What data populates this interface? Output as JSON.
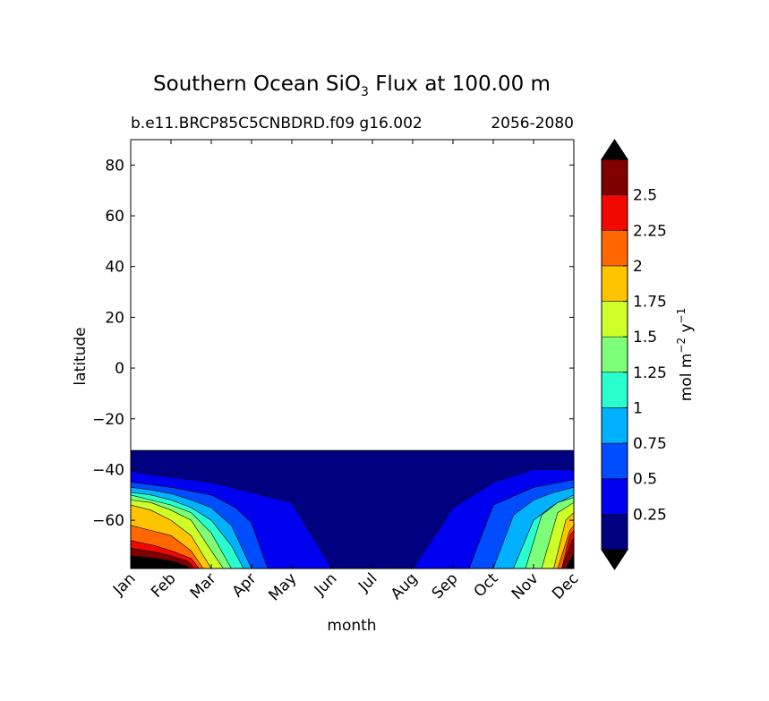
{
  "figure": {
    "title_main": "Southern Ocean SiO",
    "title_sub": "3",
    "title_rest": " Flux at 100.00 m",
    "subtitle_left": "b.e11.BRCP85C5CNBDRD.f09 g16.002",
    "subtitle_right": "2056-2080"
  },
  "chart_data": {
    "type": "heatmap",
    "xlabel": "month",
    "ylabel": "latitude",
    "x_ticks": [
      "Jan",
      "Feb",
      "Mar",
      "Apr",
      "May",
      "Jun",
      "Jul",
      "Aug",
      "Sep",
      "Oct",
      "Nov",
      "Dec"
    ],
    "y_ticks": [
      80,
      60,
      40,
      20,
      0,
      -20,
      -40,
      -60
    ],
    "y_tick_labels": [
      "80",
      "60",
      "40",
      "20",
      "0",
      "−20",
      "−40",
      "−60"
    ],
    "ylim": [
      -79,
      90
    ],
    "data_region_lat": [
      -79,
      -32.5
    ],
    "colorbar": {
      "label_main": "mol m",
      "label_sup1": "−2",
      "label_mid": " y",
      "label_sup2": "−1",
      "levels": [
        0,
        0.25,
        0.5,
        0.75,
        1,
        1.25,
        1.5,
        1.75,
        2,
        2.25,
        2.5,
        2.75
      ],
      "tick_labels": [
        "0.25",
        "0.5",
        "0.75",
        "1",
        "1.25",
        "1.5",
        "1.75",
        "2",
        "2.25",
        "2.5"
      ],
      "colors": [
        "#000080",
        "#0000f1",
        "#004dff",
        "#00b1ff",
        "#29ffce",
        "#7dff7a",
        "#ceff29",
        "#ffc400",
        "#ff6800",
        "#f10800",
        "#800000"
      ],
      "under_color": "#000000",
      "over_color": "#000000",
      "extend": "both"
    },
    "contours": [
      {
        "level": 0.25,
        "months": [
          0,
          0.5,
          1,
          2,
          3,
          4,
          5,
          6,
          7,
          8,
          9,
          10,
          11
        ],
        "lat": [
          -40.5,
          -42,
          -43,
          -45,
          -49,
          -53,
          -79,
          -79,
          -79,
          -55,
          -45,
          -40,
          -40
        ]
      },
      {
        "level": 0.5,
        "months": [
          0,
          0.5,
          1,
          2,
          2.6,
          3,
          3.4,
          8.4,
          9,
          10,
          11
        ],
        "lat": [
          -45,
          -46,
          -47,
          -50,
          -55,
          -61,
          -79,
          -79,
          -54,
          -47,
          -44
        ]
      },
      {
        "level": 0.75,
        "months": [
          0,
          0.5,
          1,
          1.5,
          2,
          2.5,
          3,
          9,
          9.5,
          10,
          10.5,
          11
        ],
        "lat": [
          -47,
          -48,
          -49.5,
          -52,
          -55,
          -62,
          -79,
          -79,
          -58,
          -52,
          -49,
          -47
        ]
      },
      {
        "level": 1.0,
        "months": [
          0,
          0.5,
          1,
          1.5,
          2,
          2.5,
          2.8,
          9.5,
          10,
          10.5,
          11
        ],
        "lat": [
          -49,
          -50,
          -52,
          -55,
          -60,
          -70,
          -79,
          -79,
          -60,
          -54,
          -50
        ]
      },
      {
        "level": 1.25,
        "months": [
          0,
          0.5,
          1,
          1.5,
          2,
          2.5,
          9.8,
          10.2,
          10.6,
          11
        ],
        "lat": [
          -50,
          -52,
          -54,
          -57,
          -65,
          -79,
          -79,
          -58,
          -53,
          -51
        ]
      },
      {
        "level": 1.5,
        "months": [
          0,
          0.5,
          1,
          1.5,
          2,
          2.3,
          10.2,
          10.6,
          11
        ],
        "lat": [
          -52,
          -53,
          -56,
          -60,
          -72,
          -79,
          -79,
          -57,
          -53
        ]
      },
      {
        "level": 1.75,
        "months": [
          0,
          0.5,
          1,
          1.5,
          2,
          10.5,
          10.8,
          11
        ],
        "lat": [
          -54,
          -56,
          -60,
          -66,
          -79,
          -79,
          -60,
          -57
        ]
      },
      {
        "level": 2.0,
        "months": [
          0,
          0.5,
          1,
          1.5,
          1.8,
          10.6,
          10.9,
          11
        ],
        "lat": [
          -62,
          -64,
          -66,
          -72,
          -79,
          -79,
          -64,
          -62
        ]
      },
      {
        "level": 2.25,
        "months": [
          0,
          0.6,
          1,
          1.5,
          1.7,
          10.7,
          10.9,
          11
        ],
        "lat": [
          -68,
          -70,
          -72,
          -75,
          -79,
          -79,
          -66,
          -64
        ]
      },
      {
        "level": 2.5,
        "months": [
          0,
          0.6,
          1,
          1.4,
          1.6,
          10.7,
          10.95,
          11
        ],
        "lat": [
          -71,
          -72.5,
          -74,
          -76,
          -79,
          -79,
          -68,
          -67
        ]
      },
      {
        "level": 2.75,
        "months": [
          0,
          0.6,
          1,
          1.3,
          1.5,
          10.8,
          11,
          11
        ],
        "lat": [
          -74,
          -75,
          -76,
          -77.5,
          -79,
          -79,
          -73,
          -69
        ]
      }
    ]
  }
}
